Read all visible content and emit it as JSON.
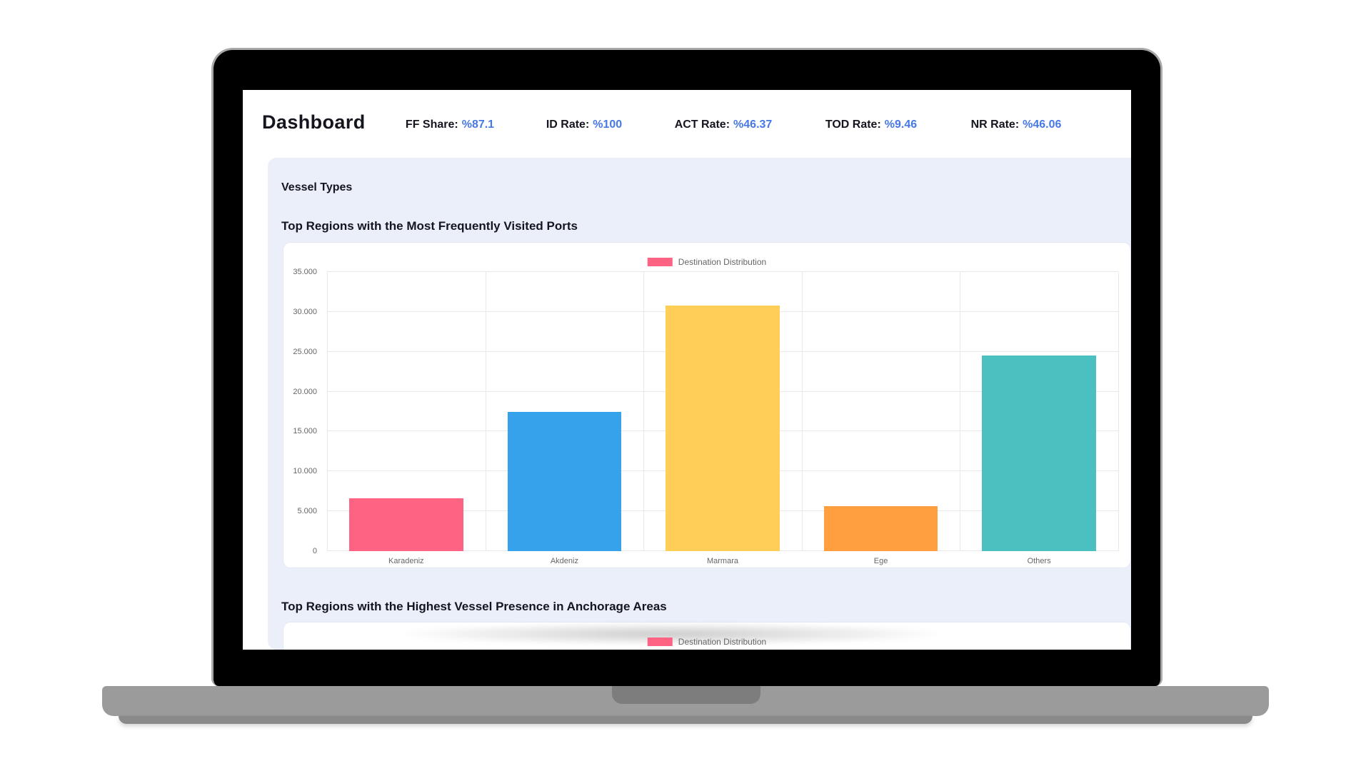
{
  "header": {
    "title": "Dashboard",
    "value_color": "#4678e6",
    "stats": [
      {
        "label": "FF Share:",
        "value": "%87.1"
      },
      {
        "label": "ID Rate:",
        "value": "%100"
      },
      {
        "label": "ACT Rate:",
        "value": "%46.37"
      },
      {
        "label": "TOD Rate:",
        "value": "%9.46"
      },
      {
        "label": "NR Rate:",
        "value": "%46.06"
      }
    ]
  },
  "main": {
    "section_title": "Vessel Types",
    "chart1_title": "Top Regions with the Most Frequently Visited Ports",
    "chart2_title": "Top Regions with the Highest Vessel Presence in Anchorage Areas"
  },
  "chart_data": [
    {
      "type": "bar",
      "title": "Top Regions with the Most Frequently Visited Ports",
      "legend": "Destination Distribution",
      "legend_color": "#FF6384",
      "legend_position": "top-center",
      "categories": [
        "Karadeniz",
        "Akdeniz",
        "Marmara",
        "Ege",
        "Others"
      ],
      "values": [
        6600,
        17500,
        30800,
        5600,
        24500
      ],
      "bar_colors": [
        "#FF6384",
        "#36A2EB",
        "#FFCE56",
        "#FF9F40",
        "#4BC0C0"
      ],
      "ylim": [
        0,
        35000
      ],
      "ytick_step": 5000,
      "ytick_format": "dot-thousands",
      "grid": true,
      "xlabel": "",
      "ylabel": ""
    },
    {
      "type": "bar",
      "title": "Top Regions with the Highest Vessel Presence in Anchorage Areas",
      "legend": "Destination Distribution",
      "legend_color": "#FF6384",
      "legend_position": "top-center",
      "visibility": "only legend visible; rest cut off by screen bottom edge"
    }
  ]
}
